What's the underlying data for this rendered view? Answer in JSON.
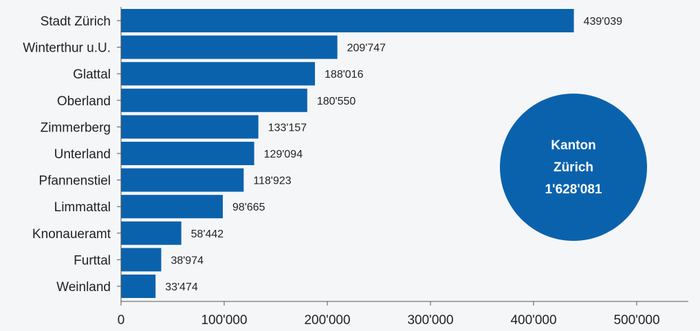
{
  "chart_data": {
    "type": "bar",
    "orientation": "horizontal",
    "categories": [
      "Stadt Zürich",
      "Winterthur u.U.",
      "Glattal",
      "Oberland",
      "Zimmerberg",
      "Unterland",
      "Pfannenstiel",
      "Limmattal",
      "Knonaueramt",
      "Furttal",
      "Weinland"
    ],
    "values": [
      439039,
      209747,
      188016,
      180550,
      133157,
      129094,
      118923,
      98665,
      58442,
      38974,
      33474
    ],
    "value_labels": [
      "439'039",
      "209'747",
      "188'016",
      "180'550",
      "133'157",
      "129'094",
      "118'923",
      "98'665",
      "58'442",
      "38'974",
      "33'474"
    ],
    "xlim": [
      0,
      550000
    ],
    "xticks": [
      0,
      100000,
      200000,
      300000,
      400000,
      500000
    ],
    "xtick_labels": [
      "0",
      "100'000",
      "200'000",
      "300'000",
      "400'000",
      "500'000"
    ],
    "grid": false,
    "bar_color": "#0a62ad",
    "annotation": {
      "lines": [
        "Kanton",
        "Zürich",
        "1'628'081"
      ],
      "shape": "circle",
      "color": "#0a62ad"
    }
  }
}
